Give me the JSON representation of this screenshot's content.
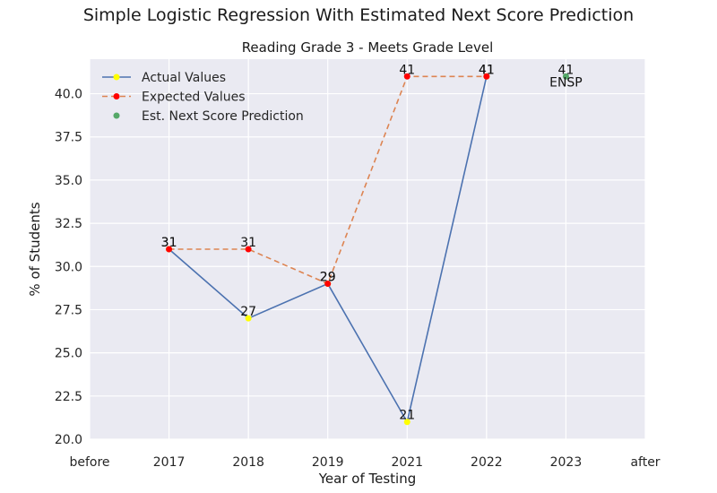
{
  "figure_title": "Simple Logistic Regression With Estimated Next Score Prediction",
  "chart_data": {
    "type": "line",
    "title": "Reading Grade 3 - Meets Grade Level",
    "xlabel": "Year of Testing",
    "ylabel": "% of Students",
    "categories": [
      "before",
      "2017",
      "2018",
      "2019",
      "2021",
      "2022",
      "2023",
      "after"
    ],
    "ylim": [
      20.0,
      42.0
    ],
    "yticks": [
      "20.0",
      "22.5",
      "25.0",
      "27.5",
      "30.0",
      "32.5",
      "35.0",
      "37.5",
      "40.0"
    ],
    "grid": true,
    "legend_position": "top-left",
    "series": [
      {
        "name": "Actual Values",
        "style": "solid",
        "line_color": "#4c72b0",
        "marker_color": "#ffff00",
        "points": [
          {
            "x": "2017",
            "y": 31,
            "label": "31"
          },
          {
            "x": "2018",
            "y": 27,
            "label": "27"
          },
          {
            "x": "2019",
            "y": 29,
            "label": "29"
          },
          {
            "x": "2021",
            "y": 21,
            "label": "21"
          },
          {
            "x": "2022",
            "y": 41,
            "label": "41"
          }
        ]
      },
      {
        "name": "Expected Values",
        "style": "dashed",
        "line_color": "#dd8452",
        "marker_color": "#ff0000",
        "points": [
          {
            "x": "2017",
            "y": 31,
            "label": "31"
          },
          {
            "x": "2018",
            "y": 31,
            "label": "31"
          },
          {
            "x": "2019",
            "y": 29,
            "label": "29"
          },
          {
            "x": "2021",
            "y": 41,
            "label": "41"
          },
          {
            "x": "2022",
            "y": 41,
            "label": "41"
          }
        ]
      },
      {
        "name": "Est. Next Score Prediction",
        "style": "marker",
        "marker_color": "#55a868",
        "points": [
          {
            "x": "2023",
            "y": 41,
            "label": "41",
            "annotation": "ENSP"
          }
        ]
      }
    ]
  },
  "colors": {
    "plot_background": "#eaeaf2",
    "grid": "#ffffff"
  }
}
